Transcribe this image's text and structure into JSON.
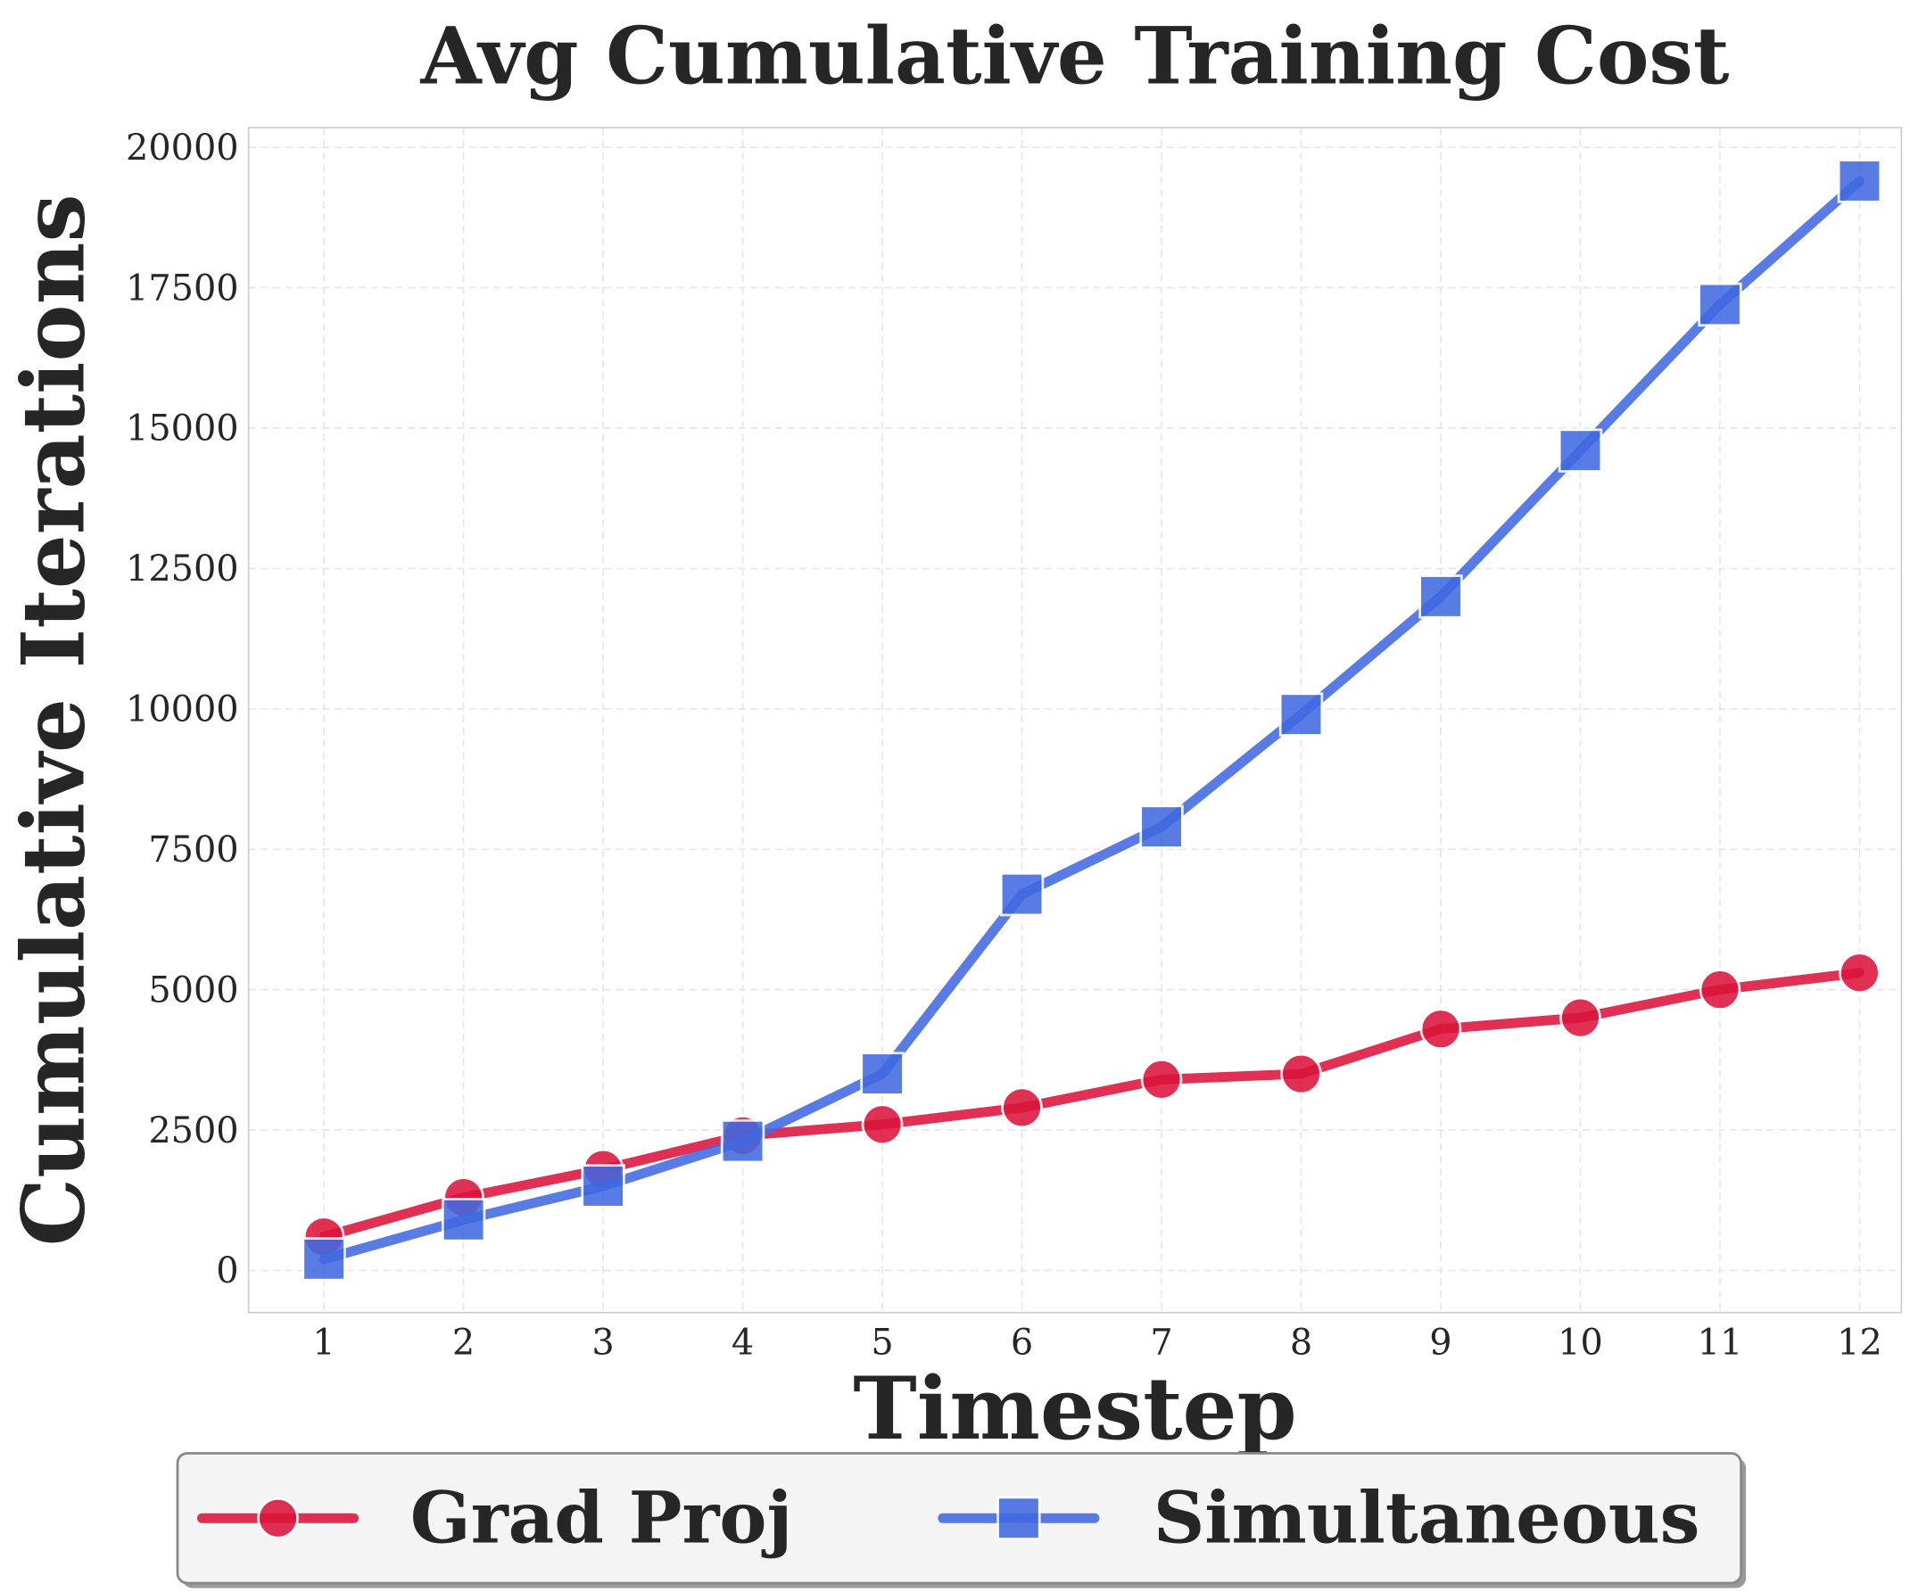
{
  "chart_data": {
    "type": "line",
    "title": "Avg Cumulative Training Cost",
    "xlabel": "Timestep",
    "ylabel": "Cumulative Iterations",
    "x": [
      1,
      2,
      3,
      4,
      5,
      6,
      7,
      8,
      9,
      10,
      11,
      12
    ],
    "xticks": [
      "1",
      "2",
      "3",
      "4",
      "5",
      "6",
      "7",
      "8",
      "9",
      "10",
      "11",
      "12"
    ],
    "yticks": [
      "0",
      "2500",
      "5000",
      "7500",
      "10000",
      "12500",
      "15000",
      "17500",
      "20000"
    ],
    "ytick_values": [
      0,
      2500,
      5000,
      7500,
      10000,
      12500,
      15000,
      17500,
      20000
    ],
    "xlim": [
      0.46,
      12.3
    ],
    "ylim": [
      -750,
      20350
    ],
    "grid": true,
    "legend_position": "bottom-center",
    "series": [
      {
        "name": "Grad Proj",
        "color": "#DC143C",
        "marker": "circle",
        "values": [
          600,
          1300,
          1800,
          2400,
          2600,
          2900,
          3400,
          3500,
          4300,
          4500,
          5000,
          5300
        ]
      },
      {
        "name": "Simultaneous",
        "color": "#4169E1",
        "marker": "square",
        "values": [
          200,
          900,
          1500,
          2300,
          3500,
          6700,
          7900,
          9900,
          12000,
          14600,
          17200,
          19400
        ]
      }
    ]
  }
}
